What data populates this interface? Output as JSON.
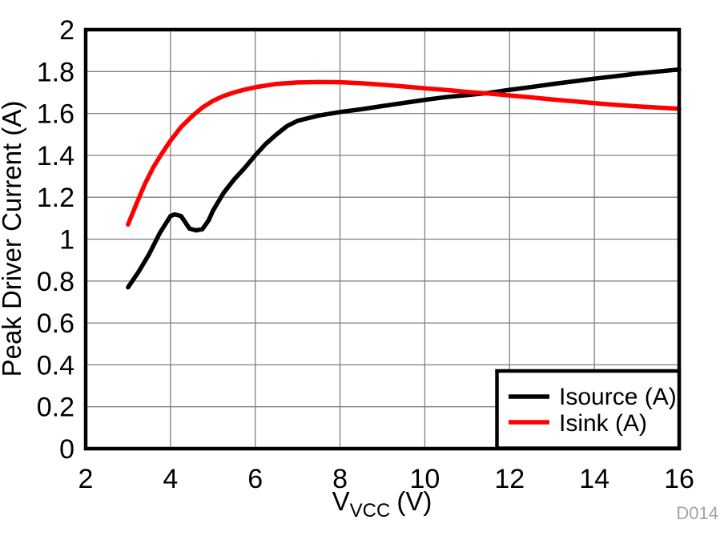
{
  "figure": {
    "watermark": "D014",
    "watermark_color": "#a0a3a6",
    "background": "#ffffff"
  },
  "chart_data": {
    "type": "line",
    "title": "",
    "xlabel_main": "V",
    "xlabel_sub": "VCC",
    "xlabel_unit": "(V)",
    "ylabel": "Peak Driver Current (A)",
    "xlim": [
      2,
      16
    ],
    "ylim": [
      0,
      2
    ],
    "x_tick_labels": [
      "2",
      "4",
      "6",
      "8",
      "10",
      "12",
      "14",
      "16"
    ],
    "y_tick_labels": [
      "0",
      "0.2",
      "0.4",
      "0.6",
      "0.8",
      "1",
      "1.2",
      "1.4",
      "1.6",
      "1.8",
      "2"
    ],
    "grid": "major-both",
    "grid_color": "#808080",
    "frame_color": "#000000",
    "legend_position": "lower-right",
    "series": [
      {
        "name": "Isource (A)",
        "color": "#000000",
        "points": [
          [
            3,
            0.77
          ],
          [
            3.25,
            0.845
          ],
          [
            3.5,
            0.93
          ],
          [
            3.75,
            1.03
          ],
          [
            4,
            1.11
          ],
          [
            4.1,
            1.118
          ],
          [
            4.25,
            1.11
          ],
          [
            4.45,
            1.05
          ],
          [
            4.6,
            1.042
          ],
          [
            4.75,
            1.047
          ],
          [
            4.9,
            1.09
          ],
          [
            5,
            1.135
          ],
          [
            5.25,
            1.22
          ],
          [
            5.5,
            1.285
          ],
          [
            5.75,
            1.34
          ],
          [
            6,
            1.4
          ],
          [
            6.25,
            1.455
          ],
          [
            6.5,
            1.5
          ],
          [
            6.75,
            1.54
          ],
          [
            7,
            1.565
          ],
          [
            7.5,
            1.59
          ],
          [
            8,
            1.607
          ],
          [
            8.5,
            1.62
          ],
          [
            9,
            1.635
          ],
          [
            9.5,
            1.65
          ],
          [
            10,
            1.665
          ],
          [
            10.5,
            1.678
          ],
          [
            11,
            1.688
          ],
          [
            11.5,
            1.698
          ],
          [
            12,
            1.713
          ],
          [
            12.5,
            1.726
          ],
          [
            13,
            1.74
          ],
          [
            13.5,
            1.753
          ],
          [
            14,
            1.766
          ],
          [
            14.5,
            1.778
          ],
          [
            15,
            1.79
          ],
          [
            15.5,
            1.8
          ],
          [
            16,
            1.81
          ]
        ]
      },
      {
        "name": "Isink (A)",
        "color": "#ff0000",
        "points": [
          [
            3,
            1.07
          ],
          [
            3.2,
            1.17
          ],
          [
            3.4,
            1.265
          ],
          [
            3.6,
            1.345
          ],
          [
            3.8,
            1.41
          ],
          [
            4,
            1.47
          ],
          [
            4.25,
            1.535
          ],
          [
            4.5,
            1.585
          ],
          [
            4.75,
            1.628
          ],
          [
            5,
            1.66
          ],
          [
            5.25,
            1.683
          ],
          [
            5.5,
            1.7
          ],
          [
            5.75,
            1.714
          ],
          [
            6,
            1.725
          ],
          [
            6.5,
            1.741
          ],
          [
            7,
            1.748
          ],
          [
            7.5,
            1.75
          ],
          [
            8,
            1.749
          ],
          [
            8.5,
            1.744
          ],
          [
            9,
            1.737
          ],
          [
            9.5,
            1.729
          ],
          [
            10,
            1.72
          ],
          [
            10.5,
            1.712
          ],
          [
            11,
            1.703
          ],
          [
            11.5,
            1.695
          ],
          [
            12,
            1.686
          ],
          [
            12.5,
            1.677
          ],
          [
            13,
            1.667
          ],
          [
            13.5,
            1.658
          ],
          [
            14,
            1.649
          ],
          [
            14.5,
            1.641
          ],
          [
            15,
            1.634
          ],
          [
            15.5,
            1.628
          ],
          [
            16,
            1.622
          ]
        ]
      }
    ]
  }
}
